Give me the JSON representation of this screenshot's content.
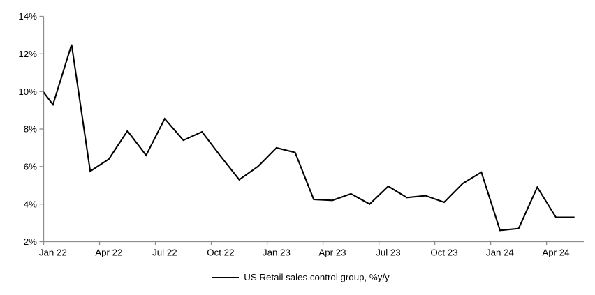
{
  "chart_data": {
    "type": "line",
    "title": "",
    "xlabel": "",
    "ylabel": "",
    "ylim": [
      2,
      14
    ],
    "grid": false,
    "background_color": "#ffffff",
    "axis_color": "#8c8c8c",
    "text_color": "#000000",
    "legend_position": "bottom-center",
    "y_tick_values": [
      2,
      4,
      6,
      8,
      10,
      12,
      14
    ],
    "y_tick_labels": [
      "2%",
      "4%",
      "6%",
      "8%",
      "10%",
      "12%",
      "14%"
    ],
    "x_tick_labels": [
      "Jan 22",
      "Apr 22",
      "Jul 22",
      "Oct 22",
      "Jan 23",
      "Apr 23",
      "Jul 23",
      "Oct 23",
      "Jan 24",
      "Apr 24"
    ],
    "lead_in_points": 1,
    "x": [
      "Dec 21",
      "Jan 22",
      "Feb 22",
      "Mar 22",
      "Apr 22",
      "May 22",
      "Jun 22",
      "Jul 22",
      "Aug 22",
      "Sep 22",
      "Oct 22",
      "Nov 22",
      "Dec 22",
      "Jan 23",
      "Feb 23",
      "Mar 23",
      "Apr 23",
      "May 23",
      "Jun 23",
      "Jul 23",
      "Aug 23",
      "Sep 23",
      "Oct 23",
      "Nov 23",
      "Dec 23",
      "Jan 24",
      "Feb 24",
      "Mar 24",
      "Apr 24",
      "May 24"
    ],
    "series": [
      {
        "name": "US Retail sales control group, %y/y",
        "color": "#000000",
        "line_width": 2.1,
        "first_point_clipped_at_left_axis": true,
        "values": [
          10.6,
          9.3,
          12.5,
          5.75,
          6.4,
          7.9,
          6.6,
          8.55,
          7.4,
          7.85,
          6.55,
          5.3,
          6.0,
          7.0,
          6.75,
          4.25,
          4.2,
          4.55,
          4.0,
          4.95,
          4.35,
          4.45,
          4.1,
          5.1,
          5.7,
          2.6,
          2.7,
          4.9,
          3.3,
          3.3
        ]
      }
    ]
  }
}
